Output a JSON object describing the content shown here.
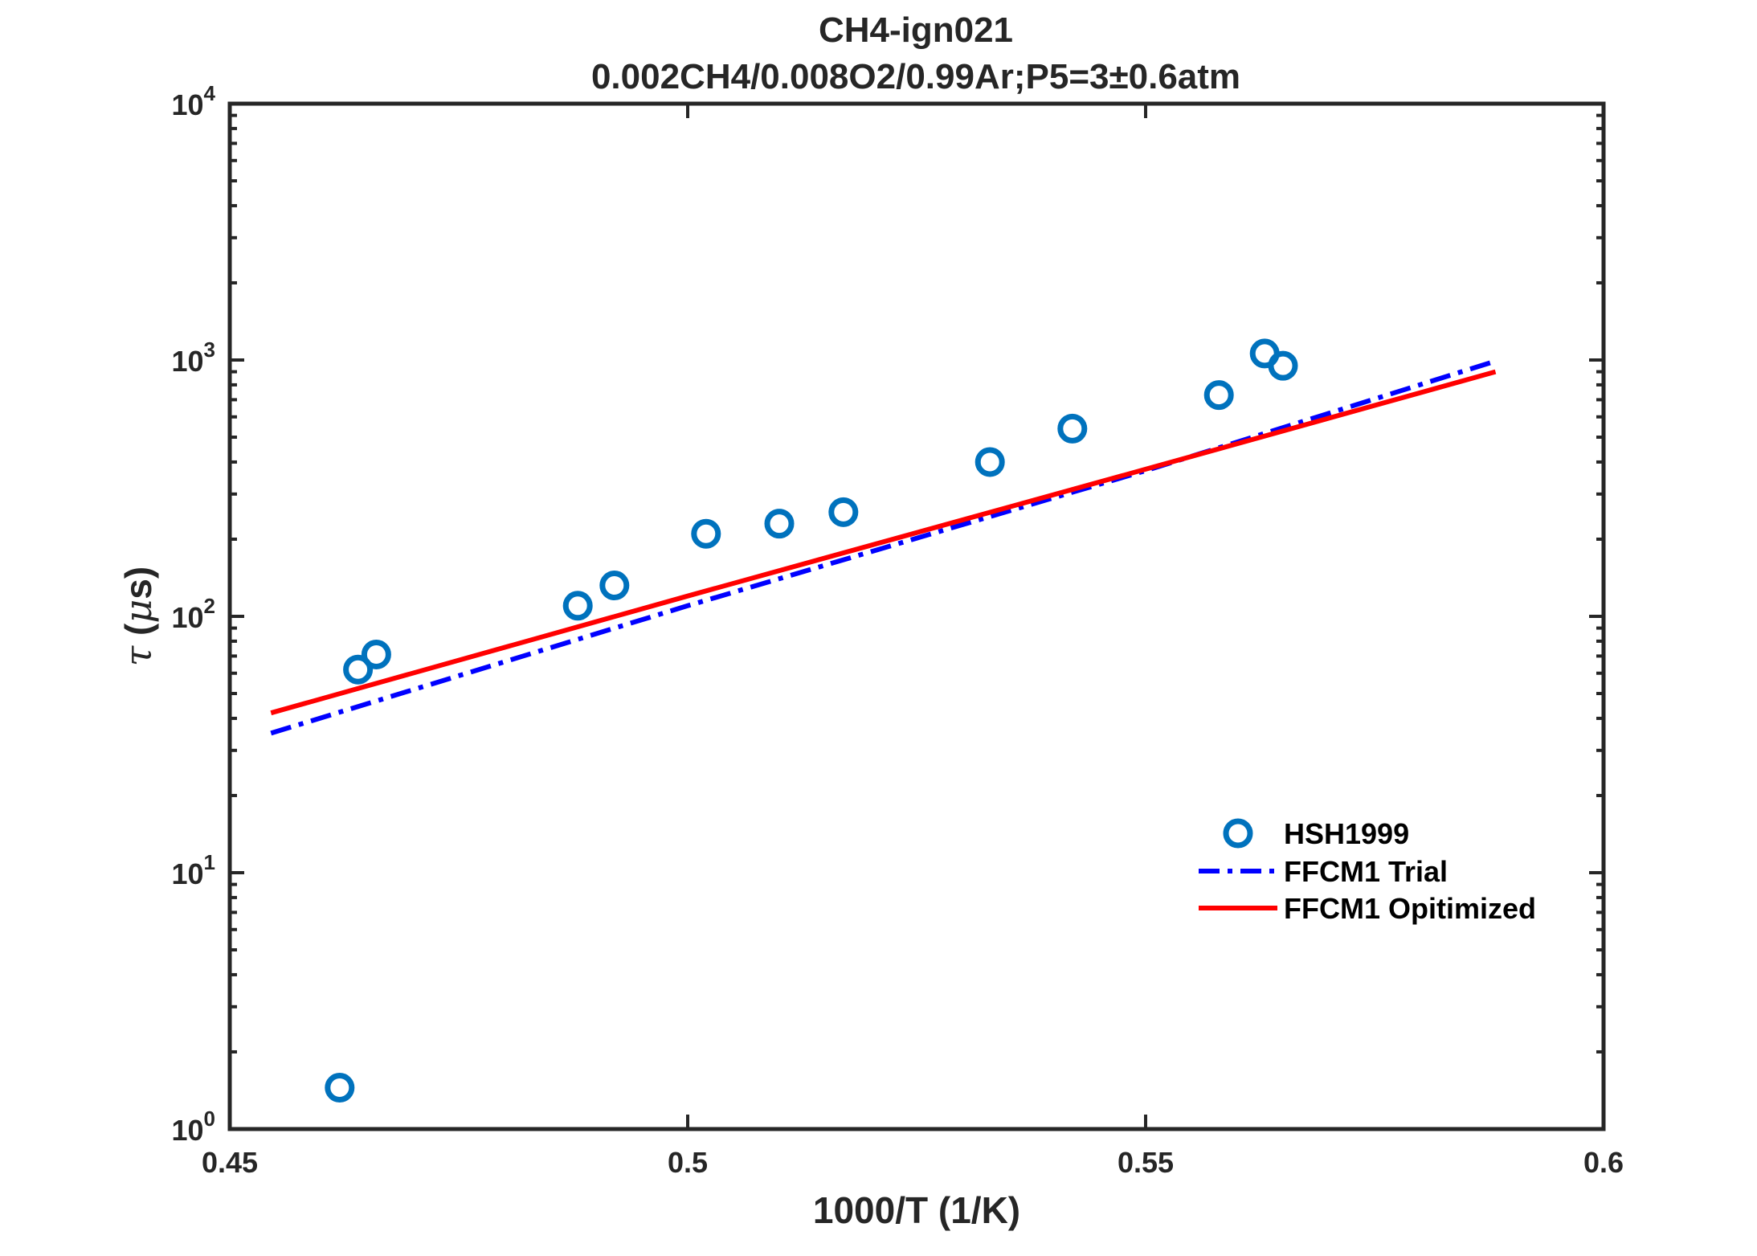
{
  "chart_data": {
    "type": "scatter",
    "title": [
      "CH4-ign021",
      "0.002CH4/0.008O2/0.99Ar;P5=3±0.6atm"
    ],
    "xlabel": "1000/T (1/K)",
    "ylabel": {
      "symbol": "τ",
      "open": " (",
      "mu": "μ",
      "unit": "s)"
    },
    "xlim": [
      0.45,
      0.6
    ],
    "ylim": [
      1,
      10000
    ],
    "yscale": "log",
    "xticks": [
      {
        "value": 0.45,
        "label": "0.45"
      },
      {
        "value": 0.5,
        "label": "0.5"
      },
      {
        "value": 0.55,
        "label": "0.55"
      },
      {
        "value": 0.6,
        "label": "0.6"
      }
    ],
    "yticks": [
      {
        "value": 1,
        "base": "10",
        "exp": "0"
      },
      {
        "value": 10,
        "base": "10",
        "exp": "1"
      },
      {
        "value": 100,
        "base": "10",
        "exp": "2"
      },
      {
        "value": 1000,
        "base": "10",
        "exp": "3"
      },
      {
        "value": 10000,
        "base": "10",
        "exp": "4"
      }
    ],
    "grid": false,
    "legend_position": "east",
    "series": [
      {
        "name": "HSH1999",
        "kind": "scatter",
        "marker": "circle-open",
        "color": "#0072BD",
        "x": [
          0.462,
          0.464,
          0.466,
          0.488,
          0.492,
          0.502,
          0.51,
          0.517,
          0.533,
          0.542,
          0.558,
          0.563,
          0.565
        ],
        "y": [
          1.45,
          62,
          71,
          110,
          132,
          210,
          230,
          255,
          400,
          540,
          730,
          1060,
          950
        ]
      },
      {
        "name": "FFCM1 Trial",
        "kind": "line",
        "style": "dash-dot",
        "color": "#0000FF",
        "x": [
          0.4545,
          0.5,
          0.55,
          0.5882
        ],
        "y": [
          35,
          110,
          370,
          990
        ]
      },
      {
        "name": "FFCM1 Opitimized",
        "kind": "line",
        "style": "solid",
        "color": "#FF0000",
        "x": [
          0.4545,
          0.5,
          0.55,
          0.5882
        ],
        "y": [
          42,
          120,
          375,
          900
        ]
      }
    ]
  }
}
